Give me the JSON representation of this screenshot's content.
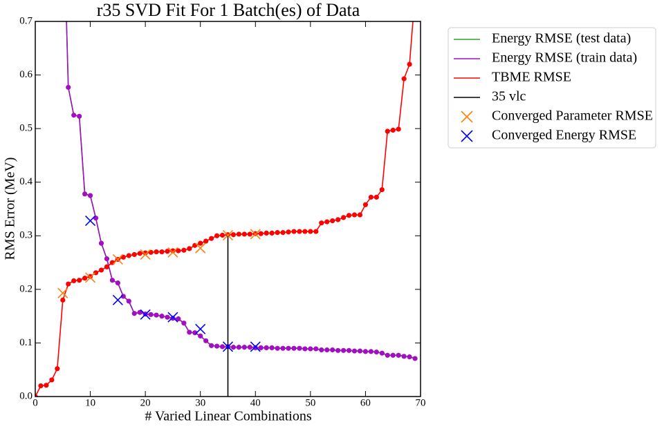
{
  "chart_data": {
    "type": "line",
    "title": "r35 SVD Fit For 1 Batch(es) of Data",
    "x_label": "# Varied Linear Combinations",
    "y_label": "RMS Error (MeV)",
    "x": [
      0,
      1,
      2,
      3,
      4,
      5,
      6,
      7,
      8,
      9,
      10,
      11,
      12,
      13,
      14,
      15,
      16,
      17,
      18,
      19,
      20,
      21,
      22,
      23,
      24,
      25,
      26,
      27,
      28,
      29,
      30,
      31,
      32,
      33,
      34,
      35,
      36,
      37,
      38,
      39,
      40,
      41,
      42,
      43,
      44,
      45,
      46,
      47,
      48,
      49,
      50,
      51,
      52,
      53,
      54,
      55,
      56,
      57,
      58,
      59,
      60,
      61,
      62,
      63,
      64,
      65,
      66,
      67,
      68,
      69
    ],
    "xlim": [
      0,
      70
    ],
    "ylim": [
      0,
      0.7
    ],
    "xticks": [
      0,
      10,
      20,
      30,
      40,
      50,
      60,
      70
    ],
    "yticks": [
      {
        "value": 0,
        "label": "0.0"
      },
      0.1,
      0.2,
      0.3,
      0.4,
      0.5,
      0.6,
      0.7
    ],
    "legend": "outside-upper-right",
    "series": [
      {
        "name": "Energy RMSE (test data)",
        "kind": "line",
        "color": "#2ca02c",
        "values": [
          null,
          null,
          null,
          null,
          null,
          0.95,
          0.577,
          0.525,
          0.523,
          0.378,
          0.375,
          0.333,
          0.286,
          0.257,
          0.217,
          0.212,
          0.187,
          0.178,
          0.155,
          0.157,
          0.154,
          0.153,
          0.152,
          0.15,
          0.148,
          0.146,
          0.145,
          0.137,
          0.12,
          0.119,
          0.113,
          0.104,
          0.095,
          0.094,
          0.093,
          0.093,
          0.092,
          0.092,
          0.092,
          0.092,
          0.091,
          0.091,
          0.091,
          0.091,
          0.09,
          0.09,
          0.09,
          0.09,
          0.09,
          0.089,
          0.089,
          0.089,
          0.087,
          0.087,
          0.087,
          0.086,
          0.086,
          0.086,
          0.085,
          0.085,
          0.084,
          0.084,
          0.083,
          0.081,
          0.077,
          0.077,
          0.077,
          0.075,
          0.074,
          0.071
        ]
      },
      {
        "name": "Energy RMSE (train data)",
        "kind": "line",
        "marker": "o",
        "color": "#a010c0",
        "values": [
          null,
          null,
          null,
          null,
          null,
          0.95,
          0.577,
          0.525,
          0.523,
          0.378,
          0.375,
          0.333,
          0.286,
          0.257,
          0.217,
          0.212,
          0.187,
          0.178,
          0.155,
          0.157,
          0.154,
          0.153,
          0.152,
          0.15,
          0.148,
          0.146,
          0.145,
          0.137,
          0.12,
          0.119,
          0.113,
          0.104,
          0.095,
          0.094,
          0.093,
          0.093,
          0.092,
          0.092,
          0.092,
          0.092,
          0.091,
          0.091,
          0.091,
          0.091,
          0.09,
          0.09,
          0.09,
          0.09,
          0.09,
          0.089,
          0.089,
          0.089,
          0.087,
          0.087,
          0.087,
          0.086,
          0.086,
          0.086,
          0.085,
          0.085,
          0.084,
          0.084,
          0.083,
          0.081,
          0.077,
          0.077,
          0.077,
          0.075,
          0.074,
          0.071
        ]
      },
      {
        "name": "TBME RMSE",
        "kind": "line",
        "marker": "o",
        "color": "#ff0000",
        "values": [
          0,
          0.02,
          0.021,
          0.031,
          0.052,
          0.18,
          0.21,
          0.216,
          0.217,
          0.221,
          0.224,
          0.231,
          0.236,
          0.242,
          0.25,
          0.256,
          0.26,
          0.263,
          0.265,
          0.267,
          0.268,
          0.269,
          0.27,
          0.27,
          0.271,
          0.272,
          0.272,
          0.273,
          0.276,
          0.282,
          0.286,
          0.29,
          0.295,
          0.3,
          0.301,
          0.302,
          0.302,
          0.303,
          0.303,
          0.303,
          0.304,
          0.304,
          0.305,
          0.305,
          0.306,
          0.306,
          0.307,
          0.308,
          0.308,
          0.308,
          0.308,
          0.308,
          0.324,
          0.326,
          0.328,
          0.33,
          0.334,
          0.338,
          0.339,
          0.339,
          0.358,
          0.372,
          0.372,
          0.386,
          0.495,
          0.497,
          0.499,
          0.593,
          0.62,
          0.75
        ]
      },
      {
        "name": "35 vlc",
        "kind": "line",
        "color": "#000000",
        "x": [
          35,
          35
        ],
        "values": [
          0,
          0.3
        ]
      },
      {
        "name": "Converged Parameter RMSE",
        "kind": "scatter",
        "color": "#ff7f0e",
        "x": [
          5,
          10,
          15,
          20,
          25,
          30,
          35,
          40
        ],
        "values": [
          0.193,
          0.222,
          0.256,
          0.265,
          0.269,
          0.277,
          0.301,
          0.303
        ]
      },
      {
        "name": "Converged Energy RMSE",
        "kind": "scatter",
        "color": "#0000ff",
        "x": [
          10,
          15,
          20,
          25,
          30,
          35,
          40
        ],
        "values": [
          0.328,
          0.18,
          0.153,
          0.148,
          0.126,
          0.093,
          0.093
        ]
      }
    ]
  }
}
